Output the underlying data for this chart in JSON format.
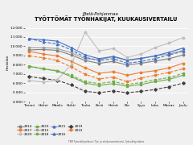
{
  "title": "TYÖTTÖMÄT TYÖNHAKIJAT, KUUKAUSIVERTAILU",
  "subtitle": "Etelä-Pohjanmaa",
  "ylabel": "Henkilöä",
  "xlabel_ticks": [
    "Tammi",
    "Helmi",
    "Maalis",
    "Huhti",
    "Touko",
    "Kesä",
    "Heinä",
    "Elo",
    "Syys",
    "Loka",
    "Marras",
    "Joulu"
  ],
  "ylim": [
    4000,
    12500
  ],
  "yticks": [
    4000,
    5000,
    6000,
    7000,
    8000,
    9000,
    10000,
    11000,
    12000
  ],
  "source": "TEM Työnvälitystilasto / Työ- ja elinkeinoministeriö, Työnvälitystilasto",
  "series": [
    {
      "year": "2014",
      "values": [
        9600,
        9650,
        9550,
        9050,
        8450,
        8150,
        8350,
        7950,
        8150,
        8400,
        8650,
        9050
      ],
      "color": "#808080",
      "linestyle": "-",
      "marker": "o"
    },
    {
      "year": "2015",
      "values": [
        9850,
        9850,
        9750,
        9300,
        8650,
        8550,
        8850,
        8450,
        8650,
        8950,
        9150,
        9550
      ],
      "color": "#a0a0a0",
      "linestyle": "-",
      "marker": "s"
    },
    {
      "year": "2016",
      "values": [
        10800,
        10700,
        10550,
        9850,
        9050,
        8650,
        8900,
        8500,
        8700,
        8950,
        9350,
        9800
      ],
      "color": "#4472c4",
      "linestyle": "-",
      "marker": "^"
    },
    {
      "year": "2017",
      "values": [
        9450,
        9150,
        8950,
        8350,
        7650,
        7050,
        7250,
        6850,
        7150,
        7350,
        7650,
        8150
      ],
      "color": "#ed7d31",
      "linestyle": "-",
      "marker": "o"
    },
    {
      "year": "2018",
      "values": [
        7800,
        7550,
        7300,
        6700,
        6000,
        5750,
        5950,
        5650,
        5850,
        6150,
        6400,
        6850
      ],
      "color": "#70ad47",
      "linestyle": "-",
      "marker": "s"
    },
    {
      "year": "2019",
      "values": [
        6700,
        6500,
        6300,
        5800,
        5100,
        4950,
        5150,
        4950,
        5100,
        5300,
        5600,
        6000
      ],
      "color": "#404040",
      "linestyle": "--",
      "marker": "D"
    },
    {
      "year": "2020",
      "values": [
        6300,
        6100,
        6350,
        8000,
        11550,
        9500,
        9750,
        8800,
        9150,
        9850,
        10350,
        10950
      ],
      "color": "#bfbfbf",
      "linestyle": "-",
      "marker": "o"
    },
    {
      "year": "2021",
      "values": [
        10850,
        10450,
        10250,
        9600,
        8800,
        8450,
        8650,
        8150,
        8350,
        8650,
        9050,
        9450
      ],
      "color": "#4472c4",
      "linestyle": "--",
      "marker": "^"
    },
    {
      "year": "2022",
      "values": [
        8950,
        8750,
        8450,
        7750,
        6950,
        6450,
        6650,
        6150,
        6550,
        6850,
        7150,
        7550
      ],
      "color": "#ed7d31",
      "linestyle": "--",
      "marker": "o"
    },
    {
      "year": "2023",
      "values": [
        7850,
        7550,
        7350,
        6850,
        6150,
        5950,
        6150,
        5850,
        6050,
        6350,
        6600,
        7050
      ],
      "color": "#70ad47",
      "linestyle": "--",
      "marker": "s"
    }
  ],
  "legend_rows": [
    [
      {
        "year": "2014",
        "color": "#808080",
        "linestyle": "-",
        "marker": "o"
      },
      {
        "year": "2017",
        "color": "#ed7d31",
        "linestyle": "-",
        "marker": "o"
      },
      {
        "year": "2020",
        "color": "#bfbfbf",
        "linestyle": "-",
        "marker": "o"
      },
      {
        "year": "2023",
        "color": "#70ad47",
        "linestyle": "--",
        "marker": "s"
      }
    ],
    [
      {
        "year": "2015",
        "color": "#a0a0a0",
        "linestyle": "-",
        "marker": "s"
      },
      {
        "year": "2018",
        "color": "#70ad47",
        "linestyle": "-",
        "marker": "s"
      },
      {
        "year": "2021",
        "color": "#4472c4",
        "linestyle": "--",
        "marker": "^"
      },
      {
        "year": "",
        "color": "none",
        "linestyle": "",
        "marker": ""
      }
    ],
    [
      {
        "year": "2016",
        "color": "#4472c4",
        "linestyle": "-",
        "marker": "^"
      },
      {
        "year": "2019",
        "color": "#404040",
        "linestyle": "--",
        "marker": "D"
      },
      {
        "year": "2022",
        "color": "#ed7d31",
        "linestyle": "--",
        "marker": "o"
      },
      {
        "year": "",
        "color": "none",
        "linestyle": "",
        "marker": ""
      }
    ]
  ]
}
